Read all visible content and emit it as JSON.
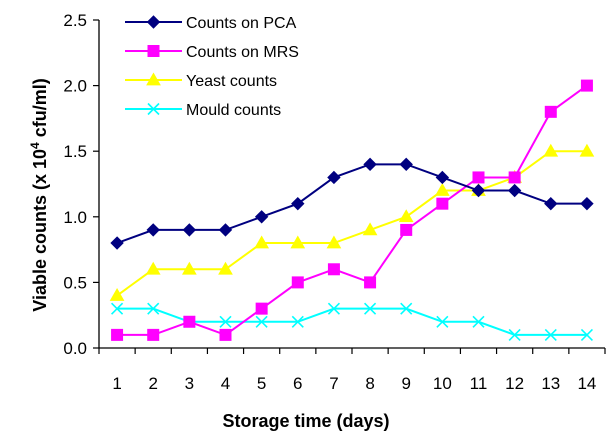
{
  "chart_data": {
    "type": "line",
    "xlabel": "Storage time (days)",
    "ylabel_main": "Viable counts (x 10",
    "ylabel_sup": "4",
    "ylabel_unit": " cfu/ml)",
    "x": [
      1,
      2,
      3,
      4,
      5,
      6,
      7,
      8,
      9,
      10,
      11,
      12,
      13,
      14
    ],
    "x_tick_labels": [
      "1",
      "2",
      "3",
      "4",
      "5",
      "6",
      "7",
      "8",
      "9",
      "10",
      "11",
      "12",
      "13",
      "14"
    ],
    "ylim": [
      0,
      2.5
    ],
    "y_ticks": [
      0.0,
      0.5,
      1.0,
      1.5,
      2.0,
      2.5
    ],
    "y_tick_labels": [
      "0.0",
      "0.5",
      "1.0",
      "1.5",
      "2.0",
      "2.5"
    ],
    "grid": false,
    "legend_position": "top-left",
    "series": [
      {
        "name": "Counts on PCA",
        "color": "#000080",
        "marker": "diamond",
        "values": [
          0.8,
          0.9,
          0.9,
          0.9,
          1.0,
          1.1,
          1.3,
          1.4,
          1.4,
          1.3,
          1.2,
          1.2,
          1.1,
          1.1
        ]
      },
      {
        "name": "Counts on MRS",
        "color": "#FF00FF",
        "marker": "square",
        "values": [
          0.1,
          0.1,
          0.2,
          0.1,
          0.3,
          0.5,
          0.6,
          0.5,
          0.9,
          1.1,
          1.3,
          1.3,
          1.8,
          2.0
        ]
      },
      {
        "name": "Yeast counts",
        "color": "#FFFF00",
        "marker": "triangle",
        "values": [
          0.4,
          0.6,
          0.6,
          0.6,
          0.8,
          0.8,
          0.8,
          0.9,
          1.0,
          1.2,
          1.2,
          1.3,
          1.5,
          1.5
        ]
      },
      {
        "name": "Mould counts",
        "color": "#00FFFF",
        "marker": "x",
        "values": [
          0.3,
          0.3,
          0.2,
          0.2,
          0.2,
          0.2,
          0.3,
          0.3,
          0.3,
          0.2,
          0.2,
          0.1,
          0.1,
          0.1
        ]
      }
    ]
  }
}
